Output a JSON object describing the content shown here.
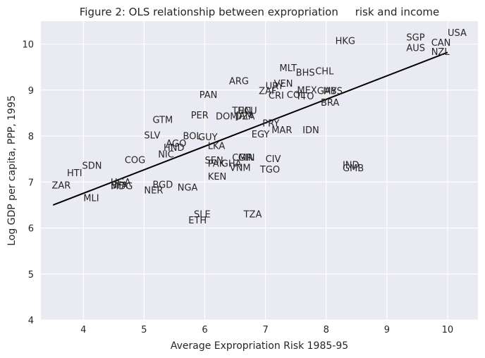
{
  "chart_data": {
    "type": "scatter",
    "title": "Figure 2: OLS relationship between expropriation     risk and income",
    "xlabel": "Average Expropriation Risk 1985-95",
    "ylabel": "Log GDP per capita, PPP, 1995",
    "xlim": [
      3.3,
      10.5
    ],
    "ylim": [
      4,
      10.5
    ],
    "xticks": [
      4,
      5,
      6,
      7,
      8,
      9,
      10
    ],
    "yticks": [
      4,
      5,
      6,
      7,
      8,
      9,
      10
    ],
    "grid": true,
    "background": "#eaeaf2",
    "grid_color": "#ffffff",
    "line_color": "#000000",
    "fit_line": {
      "x": [
        3.5,
        10.0
      ],
      "y": [
        6.5,
        9.82
      ]
    },
    "points": [
      {
        "label": "USA",
        "x": 10.0,
        "y": 10.25
      },
      {
        "label": "SGP",
        "x": 9.32,
        "y": 10.15
      },
      {
        "label": "CAN",
        "x": 9.73,
        "y": 10.03
      },
      {
        "label": "AUS",
        "x": 9.32,
        "y": 9.92
      },
      {
        "label": "NZL",
        "x": 9.73,
        "y": 9.83
      },
      {
        "label": "HKG",
        "x": 8.15,
        "y": 10.07
      },
      {
        "label": "MLT",
        "x": 7.23,
        "y": 9.48
      },
      {
        "label": "BHS",
        "x": 7.5,
        "y": 9.38
      },
      {
        "label": "CHL",
        "x": 7.82,
        "y": 9.41
      },
      {
        "label": "ARG",
        "x": 6.4,
        "y": 9.2
      },
      {
        "label": "VEN",
        "x": 7.14,
        "y": 9.14
      },
      {
        "label": "URY",
        "x": 7.0,
        "y": 9.09
      },
      {
        "label": "ZAF",
        "x": 6.89,
        "y": 8.98
      },
      {
        "label": "MEX",
        "x": 7.52,
        "y": 9.0
      },
      {
        "label": "GAB",
        "x": 7.85,
        "y": 8.98
      },
      {
        "label": "MYS",
        "x": 7.95,
        "y": 8.98
      },
      {
        "label": "COL",
        "x": 7.35,
        "y": 8.9
      },
      {
        "label": "CRI",
        "x": 7.05,
        "y": 8.88
      },
      {
        "label": "TTO",
        "x": 7.5,
        "y": 8.87
      },
      {
        "label": "BRA",
        "x": 7.91,
        "y": 8.73
      },
      {
        "label": "PAN",
        "x": 5.91,
        "y": 8.9
      },
      {
        "label": "TUN",
        "x": 6.45,
        "y": 8.55
      },
      {
        "label": "ECU",
        "x": 6.55,
        "y": 8.55
      },
      {
        "label": "DOM",
        "x": 6.18,
        "y": 8.43
      },
      {
        "label": "JAM",
        "x": 6.52,
        "y": 8.45
      },
      {
        "label": "DZA",
        "x": 6.5,
        "y": 8.43
      },
      {
        "label": "PER",
        "x": 5.77,
        "y": 8.45
      },
      {
        "label": "GTM",
        "x": 5.14,
        "y": 8.35
      },
      {
        "label": "PRY",
        "x": 6.95,
        "y": 8.28
      },
      {
        "label": "IDN",
        "x": 7.61,
        "y": 8.13
      },
      {
        "label": "MAR",
        "x": 7.1,
        "y": 8.13
      },
      {
        "label": "EGY",
        "x": 6.77,
        "y": 8.04
      },
      {
        "label": "SLV",
        "x": 5.0,
        "y": 8.02
      },
      {
        "label": "BOL",
        "x": 5.64,
        "y": 8.0
      },
      {
        "label": "GUY",
        "x": 5.89,
        "y": 7.98
      },
      {
        "label": "AGO",
        "x": 5.36,
        "y": 7.84
      },
      {
        "label": "HND",
        "x": 5.32,
        "y": 7.75
      },
      {
        "label": "LKA",
        "x": 6.05,
        "y": 7.79
      },
      {
        "label": "NIC",
        "x": 5.23,
        "y": 7.6
      },
      {
        "label": "COG",
        "x": 4.68,
        "y": 7.48
      },
      {
        "label": "SEN",
        "x": 6.0,
        "y": 7.47
      },
      {
        "label": "PAK",
        "x": 6.05,
        "y": 7.4
      },
      {
        "label": "GHA",
        "x": 6.27,
        "y": 7.4
      },
      {
        "label": "CMR",
        "x": 6.45,
        "y": 7.53
      },
      {
        "label": "GIN",
        "x": 6.55,
        "y": 7.53
      },
      {
        "label": "CIV",
        "x": 7.0,
        "y": 7.5
      },
      {
        "label": "VNM",
        "x": 6.41,
        "y": 7.31
      },
      {
        "label": "TGO",
        "x": 6.91,
        "y": 7.27
      },
      {
        "label": "IND",
        "x": 8.27,
        "y": 7.37
      },
      {
        "label": "GMB",
        "x": 8.27,
        "y": 7.3
      },
      {
        "label": "SDN",
        "x": 3.98,
        "y": 7.36
      },
      {
        "label": "HTI",
        "x": 3.73,
        "y": 7.2
      },
      {
        "label": "KEN",
        "x": 6.05,
        "y": 7.12
      },
      {
        "label": "ZAR",
        "x": 3.48,
        "y": 6.93
      },
      {
        "label": "UGA",
        "x": 4.45,
        "y": 7.0
      },
      {
        "label": "BFA",
        "x": 4.45,
        "y": 6.93
      },
      {
        "label": "MDG",
        "x": 4.45,
        "y": 6.91
      },
      {
        "label": "BGD",
        "x": 5.14,
        "y": 6.94
      },
      {
        "label": "NGA",
        "x": 5.55,
        "y": 6.88
      },
      {
        "label": "NER",
        "x": 5.0,
        "y": 6.82
      },
      {
        "label": "MLI",
        "x": 4.0,
        "y": 6.65
      },
      {
        "label": "SLE",
        "x": 5.82,
        "y": 6.3
      },
      {
        "label": "ETH",
        "x": 5.73,
        "y": 6.17
      },
      {
        "label": "TZA",
        "x": 6.64,
        "y": 6.3
      }
    ]
  }
}
